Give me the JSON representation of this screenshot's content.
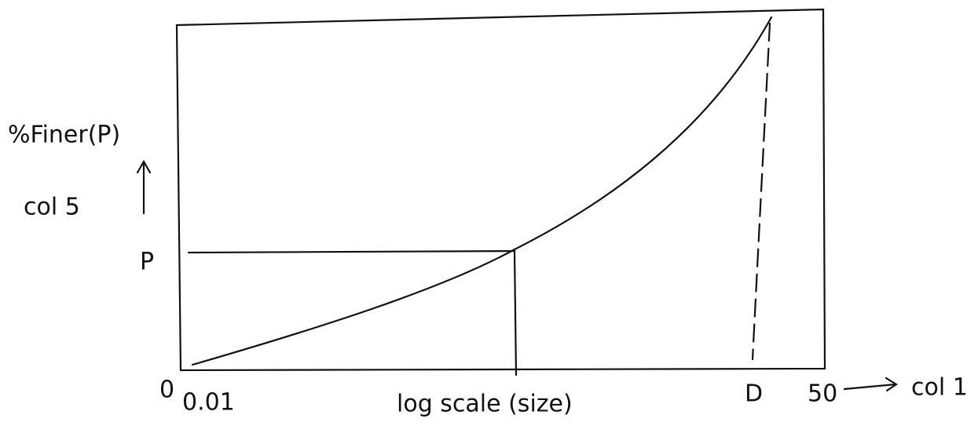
{
  "labels": {
    "y_title": "%Finer(P)",
    "y_column": "col 5",
    "p_mark": "P",
    "origin": "0",
    "x_start": "0.01",
    "x_title": "log scale (size)",
    "d_mark": "D",
    "x_end": "50",
    "x_column": "col 1"
  }
}
